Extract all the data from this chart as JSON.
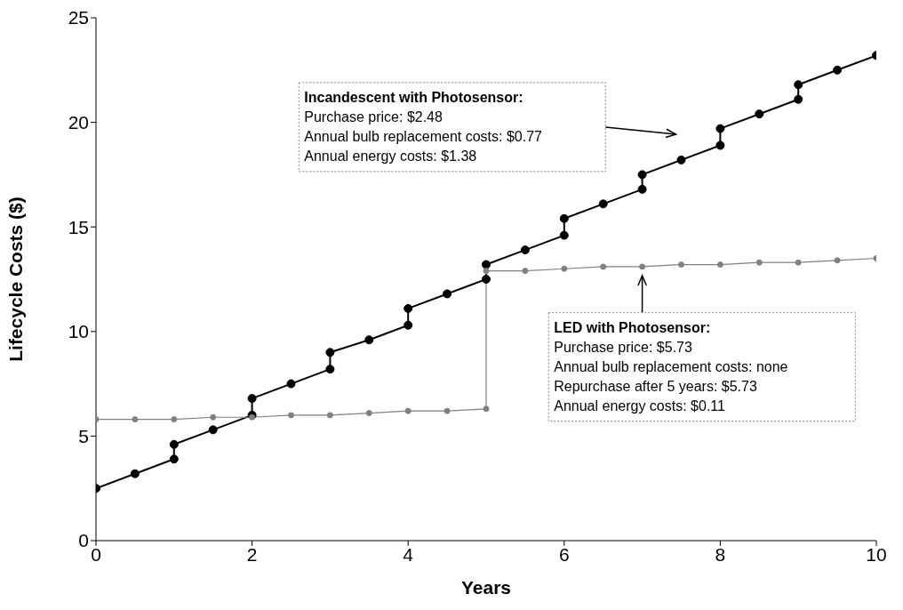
{
  "chart_data": {
    "type": "line",
    "xlabel": "Years",
    "ylabel": "Lifecycle Costs ($)",
    "xlim": [
      0,
      10
    ],
    "xticks": [
      0,
      2,
      4,
      6,
      8,
      10
    ],
    "ylim": [
      0,
      25
    ],
    "yticks": [
      0,
      5,
      10,
      15,
      20,
      25
    ],
    "grid": false,
    "legend": false,
    "marker": "circle",
    "line_style": "solid",
    "series": [
      {
        "color": "#000000",
        "x": [
          0,
          0.5,
          1,
          1,
          1.5,
          2,
          2,
          2.5,
          3,
          3,
          3.5,
          4,
          4,
          4.5,
          5,
          5,
          5.5,
          6,
          6,
          6.5,
          7,
          7,
          7.5,
          8,
          8,
          8.5,
          9,
          9,
          9.5,
          10
        ],
        "values": [
          2.5,
          3.2,
          3.9,
          4.6,
          5.3,
          6.0,
          6.8,
          7.5,
          8.2,
          9.0,
          9.6,
          10.3,
          11.1,
          11.8,
          12.5,
          13.2,
          13.9,
          14.6,
          15.4,
          16.1,
          16.8,
          17.5,
          18.2,
          18.9,
          19.7,
          20.4,
          21.1,
          21.8,
          22.5,
          23.2
        ]
      },
      {
        "color": "#808080",
        "x": [
          0,
          0.5,
          1,
          1.5,
          2,
          2.5,
          3,
          3.5,
          4,
          4.5,
          5,
          5,
          5.5,
          6,
          6.5,
          7,
          7.5,
          8,
          8.5,
          9,
          9.5,
          10
        ],
        "values": [
          5.8,
          5.8,
          5.8,
          5.9,
          5.9,
          6.0,
          6.0,
          6.1,
          6.2,
          6.2,
          6.3,
          12.9,
          12.9,
          13.0,
          13.1,
          13.1,
          13.2,
          13.2,
          13.3,
          13.3,
          13.4,
          13.5
        ]
      }
    ],
    "annotations": [
      "Incandescent with Photosensor:\nPurchase price: $2.48\nAnnual bulb replacement costs: $0.77\nAnnual energy costs: $1.38",
      "LED with Photosensor:\nPurchase price: $5.73\nAnnual bulb replacement costs: none\nRepurchase after 5 years: $5.73\nAnnual energy costs: $0.11"
    ]
  }
}
